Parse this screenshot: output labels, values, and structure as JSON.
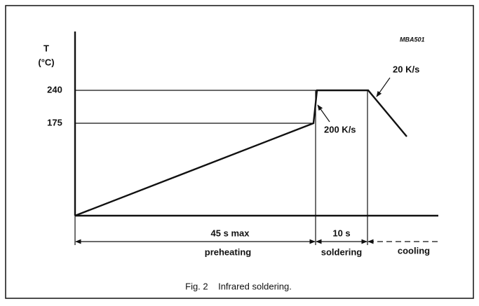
{
  "figure_id": "MBA501",
  "y_axis": {
    "symbol": "T",
    "unit": "(°C)",
    "levels": [
      "240",
      "175"
    ]
  },
  "annotations": {
    "ramp_up": "200 K/s",
    "ramp_down": "20 K/s"
  },
  "phases": [
    {
      "duration": "45 s max",
      "name": "preheating"
    },
    {
      "duration": "10 s",
      "name": "soldering"
    },
    {
      "name": "cooling"
    }
  ],
  "caption": "Fig. 2    Infrared soldering."
}
